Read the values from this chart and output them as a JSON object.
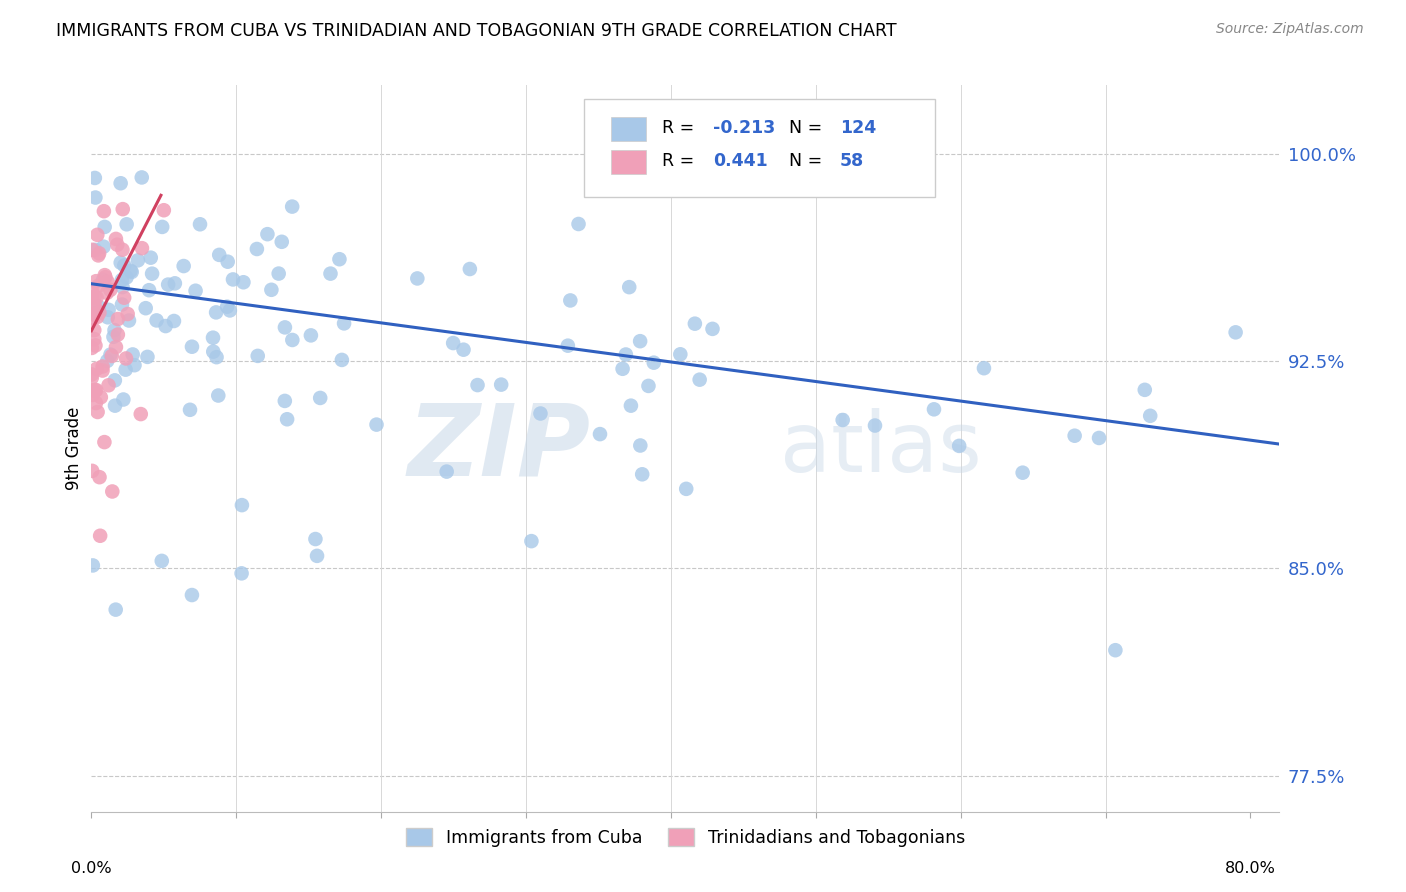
{
  "title": "IMMIGRANTS FROM CUBA VS TRINIDADIAN AND TOBAGONIAN 9TH GRADE CORRELATION CHART",
  "source": "Source: ZipAtlas.com",
  "ylabel": "9th Grade",
  "ytick_values": [
    0.775,
    0.85,
    0.925,
    1.0
  ],
  "legend_label1": "Immigrants from Cuba",
  "legend_label2": "Trinidadians and Tobagonians",
  "R_blue": -0.213,
  "N_blue": 124,
  "R_pink": 0.441,
  "N_pink": 58,
  "color_blue": "#a8c8e8",
  "color_pink": "#f0a0b8",
  "color_blue_dark": "#3060c0",
  "color_pink_dark": "#d04060",
  "watermark_zip": "ZIP",
  "watermark_atlas": "atlas",
  "xlim": [
    0.0,
    0.82
  ],
  "ylim": [
    0.762,
    1.025
  ],
  "blue_trend_x0": 0.0,
  "blue_trend_y0": 0.953,
  "blue_trend_x1": 0.82,
  "blue_trend_y1": 0.895,
  "pink_trend_x0": 0.0,
  "pink_trend_y0": 0.936,
  "pink_trend_x1": 0.048,
  "pink_trend_y1": 0.985
}
